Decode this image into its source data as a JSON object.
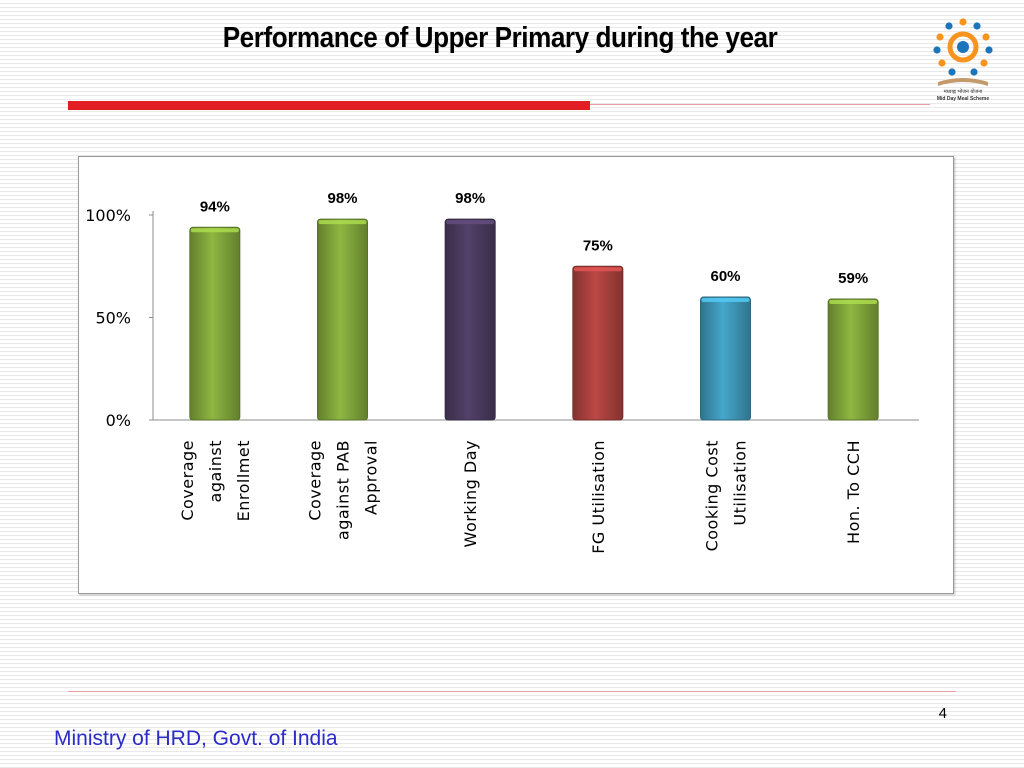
{
  "slide": {
    "title": "Performance of Upper Primary during the year",
    "page_number": "4",
    "footer": "Ministry of HRD, Govt. of India"
  },
  "logo": {
    "icon": "mid-day-meal-logo-icon",
    "text_hindi": "मध्याह्न भोजन योजना",
    "text_english": "Mid Day Meal Scheme",
    "colors": [
      "#f7941d",
      "#1b75bb",
      "#c49a6c"
    ]
  },
  "chart_data": {
    "type": "bar",
    "title": "",
    "xlabel": "",
    "ylabel": "",
    "categories": [
      [
        "Coverage",
        "against",
        "Enrollmet"
      ],
      [
        "Coverage",
        "against PAB",
        "Approval"
      ],
      [
        "Working Day"
      ],
      [
        "FG Utilisation"
      ],
      [
        "Cooking Cost",
        "Utilisation"
      ],
      [
        "Hon. To CCH"
      ]
    ],
    "values": [
      94,
      98,
      98,
      75,
      60,
      59
    ],
    "value_labels": [
      "94%",
      "98%",
      "98%",
      "75%",
      "60%",
      "59%"
    ],
    "bar_colors": [
      "#7fa33a",
      "#7fa33a",
      "#4a3a5e",
      "#a8403e",
      "#3e95b5",
      "#7fa33a"
    ],
    "y_ticks": [
      {
        "value": 0,
        "label": "0%"
      },
      {
        "value": 50,
        "label": "50%"
      },
      {
        "value": 100,
        "label": "100%"
      }
    ],
    "ylim": [
      0,
      100
    ],
    "grid": false,
    "legend": "none"
  }
}
